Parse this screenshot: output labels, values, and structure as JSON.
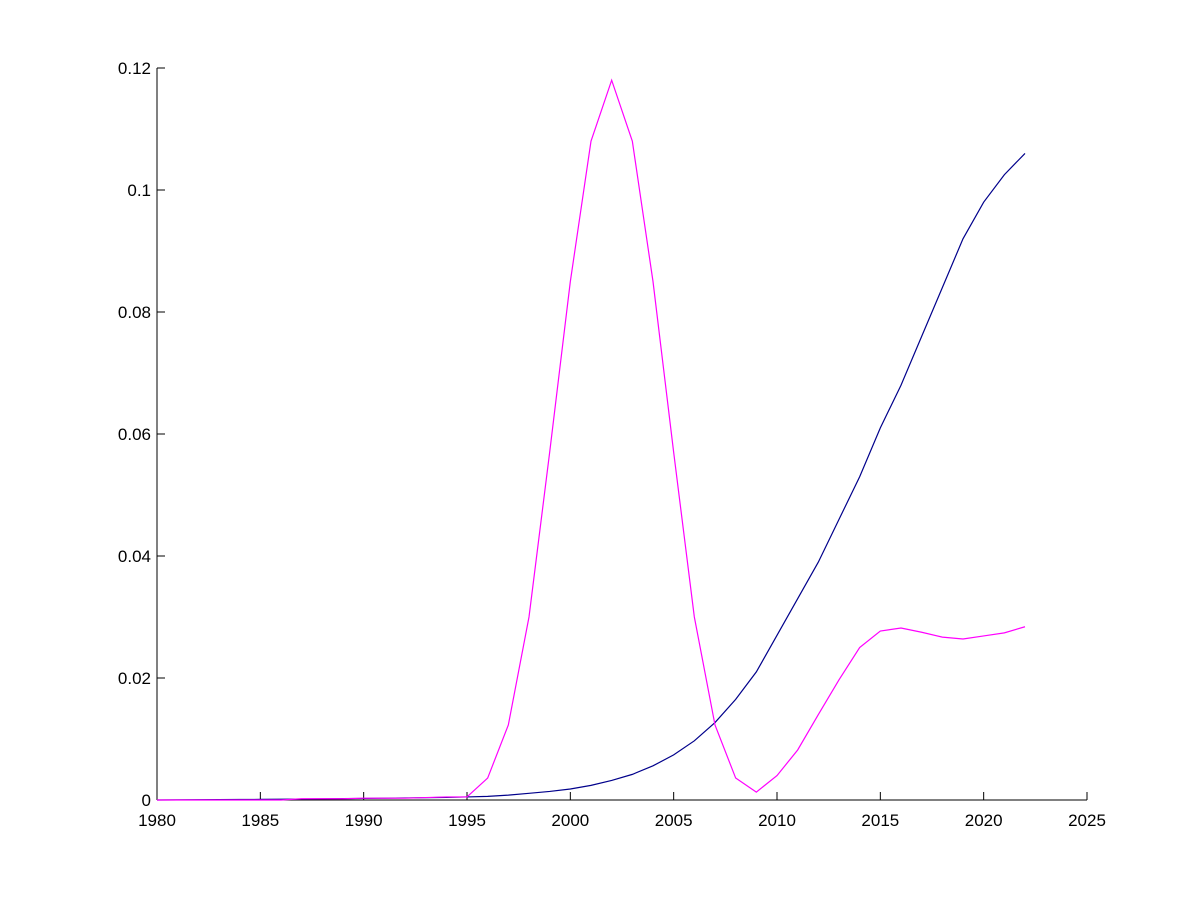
{
  "chart_data": {
    "type": "line",
    "x": [
      1980,
      1981,
      1982,
      1983,
      1984,
      1985,
      1986,
      1987,
      1988,
      1989,
      1990,
      1991,
      1992,
      1993,
      1994,
      1995,
      1996,
      1997,
      1998,
      1999,
      2000,
      2001,
      2002,
      2003,
      2004,
      2005,
      2006,
      2007,
      2008,
      2009,
      2010,
      2011,
      2012,
      2013,
      2014,
      2015,
      2016,
      2017,
      2018,
      2019,
      2020,
      2021,
      2022
    ],
    "series": [
      {
        "color": "#00008b",
        "values": [
          0,
          2e-05,
          4e-05,
          6e-05,
          8e-05,
          0.0001,
          0.00012,
          0.00015,
          0.00018,
          0.00022,
          0.00026,
          0.0003,
          0.00034,
          0.00038,
          0.00043,
          0.0005,
          0.0006,
          0.0008,
          0.0011,
          0.0014,
          0.0018,
          0.0024,
          0.0032,
          0.0042,
          0.0056,
          0.0074,
          0.0097,
          0.0127,
          0.0165,
          0.021,
          0.027,
          0.033,
          0.039,
          0.046,
          0.053,
          0.061,
          0.068,
          0.076,
          0.084,
          0.092,
          0.098,
          0.1025,
          0.106
        ]
      },
      {
        "color": "#ff00ff",
        "values": [
          0,
          0,
          0,
          0,
          0,
          0,
          0,
          0.0002,
          0.0002,
          0.0002,
          0.0003,
          0.0003,
          0.0003,
          0.0004,
          0.0005,
          0.0005,
          0.0036,
          0.0123,
          0.03,
          0.057,
          0.085,
          0.108,
          0.118,
          0.108,
          0.085,
          0.057,
          0.03,
          0.0123,
          0.0036,
          0.0013,
          0.004,
          0.0082,
          0.014,
          0.0197,
          0.025,
          0.0277,
          0.0282,
          0.0275,
          0.0267,
          0.0264,
          0.0269,
          0.0274,
          0.0284
        ]
      }
    ],
    "xlim": [
      1980,
      2025
    ],
    "xticks": [
      1980,
      1985,
      1990,
      1995,
      2000,
      2005,
      2010,
      2015,
      2020,
      2025
    ],
    "ylim": [
      0,
      0.12
    ],
    "yticks": [
      0,
      0.02,
      0.04,
      0.06,
      0.08,
      0.1,
      0.12
    ]
  }
}
